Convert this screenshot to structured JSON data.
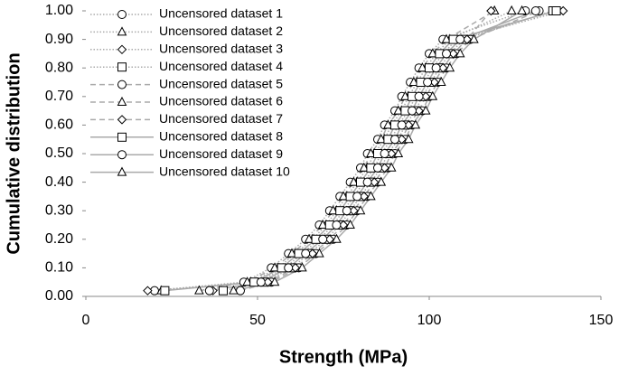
{
  "chart_data": {
    "type": "scatter-line",
    "x_label": "Strength (MPa)",
    "y_label": "Cumulative distribution",
    "xlim": [
      0,
      150
    ],
    "xticks": [
      0,
      50,
      100,
      150
    ],
    "ylim": [
      0,
      1
    ],
    "yticks": [
      {
        "value": 0,
        "label": "0.00"
      },
      {
        "value": 0.1,
        "label": "0.10"
      },
      {
        "value": 0.2,
        "label": "0.20"
      },
      {
        "value": 0.3,
        "label": "0.30"
      },
      {
        "value": 0.4,
        "label": "0.40"
      },
      {
        "value": 0.5,
        "label": "0.50"
      },
      {
        "value": 0.6,
        "label": "0.60"
      },
      {
        "value": 0.7,
        "label": "0.70"
      },
      {
        "value": 0.8,
        "label": "0.80"
      },
      {
        "value": 0.9,
        "label": "0.90"
      },
      {
        "value": 1,
        "label": "1.00"
      }
    ],
    "legend": "top-left",
    "series": [
      {
        "name": "Uncensored dataset 1",
        "color": "#aaaaaa",
        "marker": "circle",
        "dash": "dotted",
        "x": [
          20,
          46,
          54,
          59,
          64,
          68,
          71,
          74,
          77,
          80,
          82,
          85,
          87,
          90,
          92,
          94.5,
          97,
          100,
          104,
          128
        ],
        "values": [
          0.02,
          0.05,
          0.1,
          0.15,
          0.2,
          0.25,
          0.3,
          0.35,
          0.4,
          0.45,
          0.5,
          0.55,
          0.6,
          0.65,
          0.7,
          0.75,
          0.8,
          0.85,
          0.9,
          1.0
        ]
      },
      {
        "name": "Uncensored dataset 2",
        "color": "#aaaaaa",
        "marker": "triangle",
        "dash": "dotted",
        "x": [
          22,
          48,
          56,
          61,
          66,
          70,
          73,
          76,
          79,
          82,
          84,
          87,
          89,
          92,
          94,
          96.5,
          99,
          102,
          106,
          124
        ],
        "values": [
          0.02,
          0.05,
          0.1,
          0.15,
          0.2,
          0.25,
          0.3,
          0.35,
          0.4,
          0.45,
          0.5,
          0.55,
          0.6,
          0.65,
          0.7,
          0.75,
          0.8,
          0.85,
          0.9,
          1.0
        ]
      },
      {
        "name": "Uncensored dataset 3",
        "color": "#aaaaaa",
        "marker": "diamond",
        "dash": "dotted",
        "x": [
          18,
          50,
          58,
          63,
          68,
          72,
          75,
          78,
          81,
          84,
          86,
          89,
          91,
          94,
          96,
          98.5,
          101,
          104,
          108,
          139
        ],
        "values": [
          0.02,
          0.05,
          0.1,
          0.15,
          0.2,
          0.25,
          0.3,
          0.35,
          0.4,
          0.45,
          0.5,
          0.55,
          0.6,
          0.65,
          0.7,
          0.75,
          0.8,
          0.85,
          0.9,
          1.0
        ]
      },
      {
        "name": "Uncensored dataset 4",
        "color": "#aaaaaa",
        "marker": "square",
        "dash": "dotted",
        "x": [
          40,
          52,
          60,
          65,
          70,
          74,
          77,
          80,
          83,
          86,
          88,
          91,
          93,
          96,
          98,
          100.5,
          103,
          106,
          110,
          136
        ],
        "values": [
          0.02,
          0.05,
          0.1,
          0.15,
          0.2,
          0.25,
          0.3,
          0.35,
          0.4,
          0.45,
          0.5,
          0.55,
          0.6,
          0.65,
          0.7,
          0.75,
          0.8,
          0.85,
          0.9,
          1.0
        ]
      },
      {
        "name": "Uncensored dataset 5",
        "color": "#aaaaaa",
        "marker": "circle",
        "dash": "dashed",
        "x": [
          45,
          54,
          62,
          67,
          72,
          76,
          79,
          82,
          85,
          88,
          90,
          93,
          95,
          98,
          100,
          102.5,
          105,
          108,
          112,
          132
        ],
        "values": [
          0.02,
          0.05,
          0.1,
          0.15,
          0.2,
          0.25,
          0.3,
          0.35,
          0.4,
          0.45,
          0.5,
          0.55,
          0.6,
          0.65,
          0.7,
          0.75,
          0.8,
          0.85,
          0.9,
          1.0
        ]
      },
      {
        "name": "Uncensored dataset 6",
        "color": "#aaaaaa",
        "marker": "triangle",
        "dash": "dashed",
        "x": [
          33,
          47,
          55,
          60,
          65,
          69,
          72,
          75,
          78,
          81,
          83,
          86,
          88,
          91,
          93,
          95.5,
          98,
          101,
          105,
          119
        ],
        "values": [
          0.02,
          0.05,
          0.1,
          0.15,
          0.2,
          0.25,
          0.3,
          0.35,
          0.4,
          0.45,
          0.5,
          0.55,
          0.6,
          0.65,
          0.7,
          0.75,
          0.8,
          0.85,
          0.9,
          1.0
        ]
      },
      {
        "name": "Uncensored dataset 7",
        "color": "#aaaaaa",
        "marker": "diamond",
        "dash": "dashed",
        "x": [
          37,
          53,
          61,
          66,
          71,
          75,
          78,
          81,
          84,
          87,
          89,
          92,
          94,
          97,
          99,
          101.5,
          104,
          107,
          111,
          118
        ],
        "values": [
          0.02,
          0.05,
          0.1,
          0.15,
          0.2,
          0.25,
          0.3,
          0.35,
          0.4,
          0.45,
          0.5,
          0.55,
          0.6,
          0.65,
          0.7,
          0.75,
          0.8,
          0.85,
          0.9,
          1.0
        ]
      },
      {
        "name": "Uncensored dataset 8",
        "color": "#aaaaaa",
        "marker": "square",
        "dash": "solid",
        "x": [
          23,
          49,
          57,
          62,
          67,
          71,
          74,
          77,
          80,
          83,
          85,
          88,
          90,
          93,
          95,
          97.5,
          100,
          103,
          107,
          137
        ],
        "values": [
          0.02,
          0.05,
          0.1,
          0.15,
          0.2,
          0.25,
          0.3,
          0.35,
          0.4,
          0.45,
          0.5,
          0.55,
          0.6,
          0.65,
          0.7,
          0.75,
          0.8,
          0.85,
          0.9,
          1.0
        ]
      },
      {
        "name": "Uncensored dataset 9",
        "color": "#aaaaaa",
        "marker": "circle",
        "dash": "solid",
        "x": [
          36,
          51,
          59,
          64,
          69,
          73,
          76,
          79,
          82,
          85,
          87,
          90,
          92,
          95,
          97,
          99.5,
          102,
          105,
          109,
          131
        ],
        "values": [
          0.02,
          0.05,
          0.1,
          0.15,
          0.2,
          0.25,
          0.3,
          0.35,
          0.4,
          0.45,
          0.5,
          0.55,
          0.6,
          0.65,
          0.7,
          0.75,
          0.8,
          0.85,
          0.9,
          1.0
        ]
      },
      {
        "name": "Uncensored dataset 10",
        "color": "#aaaaaa",
        "marker": "triangle",
        "dash": "solid",
        "x": [
          43,
          55,
          63,
          68,
          73,
          77,
          80,
          83,
          86,
          89,
          91,
          94,
          96,
          99,
          101,
          103.5,
          106,
          109,
          113,
          127
        ],
        "values": [
          0.02,
          0.05,
          0.1,
          0.15,
          0.2,
          0.25,
          0.3,
          0.35,
          0.4,
          0.45,
          0.5,
          0.55,
          0.6,
          0.65,
          0.7,
          0.75,
          0.8,
          0.85,
          0.9,
          1.0
        ]
      }
    ]
  }
}
